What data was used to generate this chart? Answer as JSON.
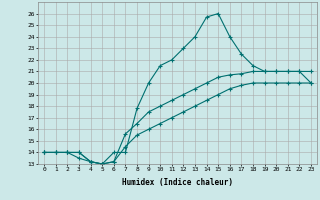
{
  "title": "",
  "xlabel": "Humidex (Indice chaleur)",
  "bg_color": "#cce8e8",
  "grid_color": "#aaaaaa",
  "line_color": "#007070",
  "xlim": [
    -0.5,
    23.5
  ],
  "ylim": [
    13,
    27
  ],
  "xticks": [
    0,
    1,
    2,
    3,
    4,
    5,
    6,
    7,
    8,
    9,
    10,
    11,
    12,
    13,
    14,
    15,
    16,
    17,
    18,
    19,
    20,
    21,
    22,
    23
  ],
  "yticks": [
    13,
    14,
    15,
    16,
    17,
    18,
    19,
    20,
    21,
    22,
    23,
    24,
    25,
    26
  ],
  "line1_x": [
    0,
    1,
    2,
    3,
    4,
    5,
    6,
    7,
    8,
    9,
    10,
    11,
    12,
    13,
    14,
    15,
    16,
    17,
    18,
    19,
    20,
    21,
    22,
    23
  ],
  "line1_y": [
    14,
    14,
    14,
    14,
    13.2,
    13,
    14,
    14,
    17.8,
    20,
    21.5,
    22,
    23,
    24,
    25.7,
    26,
    24,
    22.5,
    21.5,
    21,
    21,
    21,
    21,
    20
  ],
  "line2_x": [
    0,
    1,
    2,
    3,
    4,
    5,
    6,
    7,
    8,
    9,
    10,
    11,
    12,
    13,
    14,
    15,
    16,
    17,
    18,
    19,
    20,
    21,
    22,
    23
  ],
  "line2_y": [
    14,
    14,
    14,
    14,
    13.2,
    13,
    13.2,
    15.6,
    16.5,
    17.5,
    18,
    18.5,
    19,
    19.5,
    20,
    20.5,
    20.7,
    20.8,
    21,
    21,
    21,
    21,
    21,
    21
  ],
  "line3_x": [
    0,
    1,
    2,
    3,
    4,
    5,
    6,
    7,
    8,
    9,
    10,
    11,
    12,
    13,
    14,
    15,
    16,
    17,
    18,
    19,
    20,
    21,
    22,
    23
  ],
  "line3_y": [
    14,
    14,
    14,
    13.5,
    13.2,
    13,
    13.2,
    14.5,
    15.5,
    16,
    16.5,
    17,
    17.5,
    18,
    18.5,
    19,
    19.5,
    19.8,
    20,
    20,
    20,
    20,
    20,
    20
  ]
}
